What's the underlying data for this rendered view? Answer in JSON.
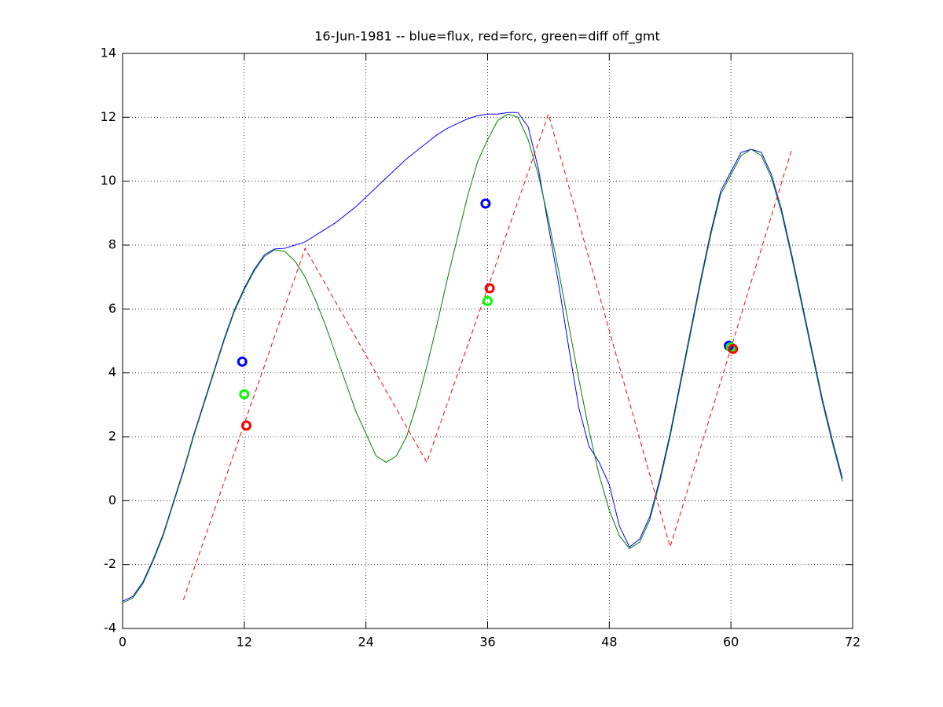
{
  "chart_data": {
    "type": "line",
    "title": "16-Jun-1981 -- blue=flux, red=forc, green=diff off_gmt",
    "xlim": [
      0,
      72
    ],
    "xticks": [
      0,
      12,
      24,
      36,
      48,
      60,
      72
    ],
    "ylim": [
      -4,
      14
    ],
    "yticks": [
      -4,
      -2,
      0,
      2,
      4,
      6,
      8,
      10,
      12,
      14
    ],
    "grid": true,
    "series": [
      {
        "color": "#0000ff",
        "style": "solid",
        "x": [
          0,
          1,
          2,
          3,
          4,
          5,
          6,
          7,
          8,
          9,
          10,
          11,
          12,
          13,
          14,
          15,
          16,
          17,
          18,
          19,
          20,
          21,
          22,
          23,
          24,
          25,
          26,
          27,
          28,
          29,
          30,
          31,
          32,
          33,
          34,
          35,
          36,
          37,
          38,
          39,
          40,
          41,
          42,
          43,
          44,
          45,
          46,
          47,
          48,
          49,
          50,
          51,
          52,
          53,
          54,
          55,
          56,
          57,
          58,
          59,
          60,
          61,
          62,
          63,
          64,
          65,
          66,
          67,
          68,
          69,
          70,
          71
        ],
        "values": [
          -3.15,
          -3.0,
          -2.55,
          -1.85,
          -1.05,
          -0.05,
          0.95,
          2.05,
          3.05,
          4.05,
          5.05,
          5.95,
          6.65,
          7.25,
          7.7,
          7.88,
          7.9,
          8.0,
          8.1,
          8.3,
          8.5,
          8.7,
          8.95,
          9.2,
          9.5,
          9.8,
          10.1,
          10.4,
          10.7,
          10.95,
          11.2,
          11.45,
          11.65,
          11.8,
          11.95,
          12.05,
          12.1,
          12.1,
          12.15,
          12.15,
          11.7,
          10.4,
          8.6,
          6.8,
          4.8,
          2.9,
          1.7,
          1.2,
          0.5,
          -0.8,
          -1.45,
          -1.2,
          -0.5,
          0.7,
          2.1,
          3.7,
          5.3,
          6.9,
          8.4,
          9.7,
          10.3,
          10.9,
          11.0,
          10.9,
          10.2,
          9.1,
          7.7,
          6.2,
          4.7,
          3.2,
          1.9,
          0.7
        ]
      },
      {
        "color": "#007f00",
        "style": "solid",
        "x": [
          0,
          1,
          2,
          3,
          4,
          5,
          6,
          7,
          8,
          9,
          10,
          11,
          12,
          13,
          14,
          15,
          16,
          17,
          18,
          19,
          20,
          21,
          22,
          23,
          24,
          25,
          26,
          27,
          28,
          29,
          30,
          31,
          32,
          33,
          34,
          35,
          36,
          37,
          38,
          39,
          40,
          41,
          42,
          43,
          44,
          45,
          46,
          47,
          48,
          49,
          50,
          51,
          52,
          53,
          54,
          55,
          56,
          57,
          58,
          59,
          60,
          61,
          62,
          63,
          64,
          65,
          66,
          67,
          68,
          69,
          70,
          71
        ],
        "values": [
          -3.2,
          -3.05,
          -2.6,
          -1.9,
          -1.1,
          -0.1,
          0.9,
          2.0,
          3.0,
          4.0,
          5.0,
          5.9,
          6.6,
          7.2,
          7.65,
          7.85,
          7.8,
          7.5,
          7.0,
          6.3,
          5.5,
          4.6,
          3.7,
          2.8,
          2.1,
          1.4,
          1.2,
          1.4,
          2.0,
          3.0,
          4.2,
          5.5,
          6.9,
          8.2,
          9.5,
          10.6,
          11.3,
          11.9,
          12.1,
          12.0,
          11.3,
          10.2,
          8.8,
          7.2,
          5.5,
          3.8,
          2.2,
          0.8,
          -0.3,
          -1.1,
          -1.5,
          -1.3,
          -0.6,
          0.6,
          2.0,
          3.6,
          5.2,
          6.8,
          8.3,
          9.6,
          10.2,
          10.8,
          11.0,
          10.8,
          10.1,
          9.0,
          7.6,
          6.1,
          4.6,
          3.1,
          1.8,
          0.6
        ]
      },
      {
        "color": "#ff0000",
        "style": "dashed",
        "x": [
          6,
          18,
          30,
          42,
          54,
          66
        ],
        "values": [
          -3.1,
          7.9,
          1.2,
          12.1,
          -1.45,
          11.0
        ]
      },
      {
        "color": "#0000ff",
        "style": "marker",
        "x": [
          11.8,
          35.8,
          59.8
        ],
        "values": [
          4.35,
          9.3,
          4.85
        ]
      },
      {
        "color": "#00ff00",
        "style": "marker",
        "x": [
          12.0,
          36.0,
          60.0
        ],
        "values": [
          3.33,
          6.25,
          4.8
        ]
      },
      {
        "color": "#ff0000",
        "style": "marker",
        "x": [
          12.2,
          36.2,
          60.2
        ],
        "values": [
          2.35,
          6.65,
          4.75
        ]
      }
    ]
  }
}
